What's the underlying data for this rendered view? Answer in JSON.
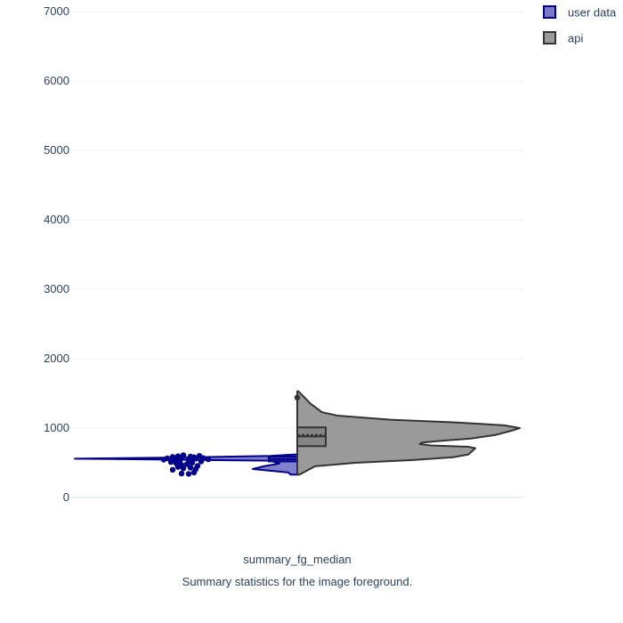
{
  "chart_data": {
    "type": "violin",
    "x_category": "summary_fg_median",
    "caption": "Summary statistics for the image foreground.",
    "ylim": [
      -150,
      7000
    ],
    "yticks": [
      0,
      1000,
      2000,
      3000,
      4000,
      5000,
      6000,
      7000
    ],
    "grid": true,
    "legend_placement": "top-right",
    "series": [
      {
        "name": "user data",
        "side": "negative",
        "fill": "#7a79c8",
        "line": "#00008b",
        "density": [
          {
            "y": 330,
            "w": 0.03
          },
          {
            "y": 360,
            "w": 0.04
          },
          {
            "y": 410,
            "w": 0.2
          },
          {
            "y": 450,
            "w": 0.15
          },
          {
            "y": 490,
            "w": 0.08
          },
          {
            "y": 530,
            "w": 0.12
          },
          {
            "y": 560,
            "w": 1.0
          },
          {
            "y": 575,
            "w": 0.55
          },
          {
            "y": 600,
            "w": 0.12
          },
          {
            "y": 620,
            "w": 0.01
          }
        ],
        "box": {
          "q1": 520,
          "median": 555,
          "q3": 590,
          "mean": 550
        },
        "points": [
          {
            "y": 340,
            "j": 0.02
          },
          {
            "y": 345,
            "j": -0.02
          },
          {
            "y": 360,
            "j": 0.05
          },
          {
            "y": 400,
            "j": -0.07
          },
          {
            "y": 410,
            "j": 0.06
          },
          {
            "y": 420,
            "j": -0.01
          },
          {
            "y": 430,
            "j": 0.03
          },
          {
            "y": 440,
            "j": -0.04
          },
          {
            "y": 455,
            "j": 0.07
          },
          {
            "y": 470,
            "j": -0.02
          },
          {
            "y": 480,
            "j": 0.01
          },
          {
            "y": 490,
            "j": -0.05
          },
          {
            "y": 500,
            "j": 0.04
          },
          {
            "y": 510,
            "j": -0.08
          },
          {
            "y": 520,
            "j": 0.09
          },
          {
            "y": 530,
            "j": -0.03
          },
          {
            "y": 540,
            "j": 0.02
          },
          {
            "y": 545,
            "j": -0.12
          },
          {
            "y": 550,
            "j": 0.13
          },
          {
            "y": 555,
            "j": -0.06
          },
          {
            "y": 560,
            "j": 0.06
          },
          {
            "y": 565,
            "j": -0.1
          },
          {
            "y": 570,
            "j": 0.1
          },
          {
            "y": 575,
            "j": -0.02
          },
          {
            "y": 580,
            "j": 0.05
          },
          {
            "y": 585,
            "j": -0.07
          },
          {
            "y": 590,
            "j": 0.03
          },
          {
            "y": 595,
            "j": -0.04
          },
          {
            "y": 600,
            "j": 0.08
          },
          {
            "y": 610,
            "j": -0.01
          }
        ]
      },
      {
        "name": "api",
        "side": "positive",
        "fill": "#9a9a9a",
        "line": "#333333",
        "density": [
          {
            "y": 330,
            "w": 0.01
          },
          {
            "y": 450,
            "w": 0.08
          },
          {
            "y": 500,
            "w": 0.26
          },
          {
            "y": 540,
            "w": 0.52
          },
          {
            "y": 580,
            "w": 0.7
          },
          {
            "y": 620,
            "w": 0.77
          },
          {
            "y": 680,
            "w": 0.79
          },
          {
            "y": 710,
            "w": 0.8
          },
          {
            "y": 730,
            "w": 0.77
          },
          {
            "y": 750,
            "w": 0.6
          },
          {
            "y": 770,
            "w": 0.55
          },
          {
            "y": 790,
            "w": 0.56
          },
          {
            "y": 810,
            "w": 0.62
          },
          {
            "y": 850,
            "w": 0.78
          },
          {
            "y": 900,
            "w": 0.89
          },
          {
            "y": 960,
            "w": 0.96
          },
          {
            "y": 1000,
            "w": 1.0
          },
          {
            "y": 1040,
            "w": 0.93
          },
          {
            "y": 1080,
            "w": 0.72
          },
          {
            "y": 1120,
            "w": 0.42
          },
          {
            "y": 1180,
            "w": 0.18
          },
          {
            "y": 1230,
            "w": 0.11
          },
          {
            "y": 1280,
            "w": 0.09
          },
          {
            "y": 1350,
            "w": 0.06
          },
          {
            "y": 1450,
            "w": 0.03
          },
          {
            "y": 1530,
            "w": 0.005
          }
        ],
        "box": {
          "q1": 740,
          "median": 880,
          "q3": 1010,
          "mean": 900
        },
        "points": [
          {
            "y": 1440,
            "j": 0.0
          }
        ]
      }
    ]
  }
}
